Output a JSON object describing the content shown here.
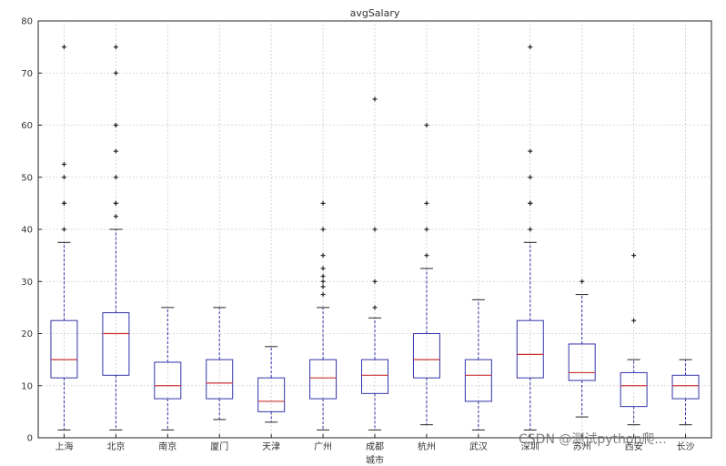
{
  "chart_data": {
    "type": "box",
    "title": "avgSalary",
    "xlabel": "城市",
    "ylabel": "",
    "ylim": [
      0,
      80
    ],
    "yticks": [
      0,
      10,
      20,
      30,
      40,
      50,
      60,
      70,
      80
    ],
    "grid": true,
    "categories": [
      "上海",
      "北京",
      "南京",
      "厦门",
      "天津",
      "广州",
      "成都",
      "杭州",
      "武汉",
      "深圳",
      "苏州",
      "西安",
      "长沙"
    ],
    "series": [
      {
        "values": [
          {
            "whisker_low": 1.5,
            "q1": 11.5,
            "median": 15,
            "q3": 22.5,
            "whisker_high": 37.5,
            "outliers": [
              40,
              45,
              45,
              50,
              52.5,
              75
            ]
          },
          {
            "whisker_low": 1.5,
            "q1": 12,
            "median": 20,
            "q3": 24,
            "whisker_high": 40,
            "outliers": [
              42.5,
              45,
              45,
              50,
              55,
              60,
              60,
              70,
              75
            ]
          },
          {
            "whisker_low": 1.5,
            "q1": 7.5,
            "median": 10,
            "q3": 14.5,
            "whisker_high": 25,
            "outliers": []
          },
          {
            "whisker_low": 3.5,
            "q1": 7.5,
            "median": 10.5,
            "q3": 15,
            "whisker_high": 25,
            "outliers": []
          },
          {
            "whisker_low": 3,
            "q1": 5,
            "median": 7,
            "q3": 11.5,
            "whisker_high": 17.5,
            "outliers": []
          },
          {
            "whisker_low": 1.5,
            "q1": 7.5,
            "median": 11.5,
            "q3": 15,
            "whisker_high": 25,
            "outliers": [
              27.5,
              29,
              30,
              31,
              32.5,
              35,
              40,
              45
            ]
          },
          {
            "whisker_low": 1.5,
            "q1": 8.5,
            "median": 12,
            "q3": 15,
            "whisker_high": 23,
            "outliers": [
              25,
              30,
              40,
              65
            ]
          },
          {
            "whisker_low": 2.5,
            "q1": 11.5,
            "median": 15,
            "q3": 20,
            "whisker_high": 32.5,
            "outliers": [
              35,
              40,
              45,
              60
            ]
          },
          {
            "whisker_low": 1.5,
            "q1": 7,
            "median": 12,
            "q3": 15,
            "whisker_high": 26.5,
            "outliers": []
          },
          {
            "whisker_low": 1.5,
            "q1": 11.5,
            "median": 16,
            "q3": 22.5,
            "whisker_high": 37.5,
            "outliers": [
              40,
              45,
              45,
              50,
              55,
              75
            ]
          },
          {
            "whisker_low": 4,
            "q1": 11,
            "median": 12.5,
            "q3": 18,
            "whisker_high": 27.5,
            "outliers": [
              30
            ]
          },
          {
            "whisker_low": 2.5,
            "q1": 6,
            "median": 10,
            "q3": 12.5,
            "whisker_high": 15,
            "outliers": [
              22.5,
              35
            ]
          },
          {
            "whisker_low": 2.5,
            "q1": 7.5,
            "median": 10,
            "q3": 12,
            "whisker_high": 15,
            "outliers": []
          }
        ]
      }
    ],
    "colors": {
      "box": "#3333aa",
      "whisker": "#3333aa",
      "median": "#cc3333",
      "outlier": "#222222",
      "grid": "#cccccc",
      "axis": "#222222"
    }
  },
  "watermark": "CSDN @测试python爬..."
}
